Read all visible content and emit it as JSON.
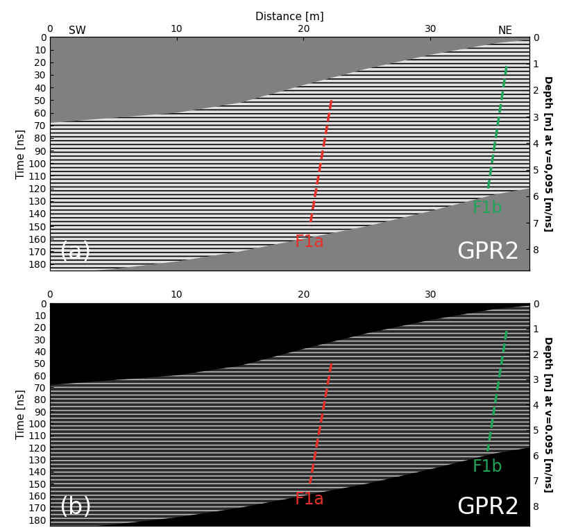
{
  "chart_data": [
    {
      "type": "area",
      "panel_label": "(a)",
      "profile": "GPR2",
      "x_label": "Distance [m]",
      "y_label": "Time [ns]",
      "y2_label": "Depth [m] at v=0,095 [m/ns]",
      "direction_labels": [
        "SW",
        "NE"
      ],
      "xlim": [
        0,
        37.8
      ],
      "xticks": [
        0,
        10,
        20,
        30
      ],
      "ylim": [
        185,
        0
      ],
      "yticks": [
        0,
        10,
        20,
        30,
        40,
        50,
        60,
        70,
        80,
        90,
        100,
        110,
        120,
        130,
        140,
        150,
        160,
        170,
        180
      ],
      "y2lim": [
        8.79,
        0
      ],
      "y2ticks": [
        0,
        1,
        2,
        3,
        4,
        5,
        6,
        7,
        8
      ],
      "extent": {
        "x": [
          0,
          5,
          10,
          15,
          20,
          25,
          30,
          35,
          37.8
        ],
        "top": [
          68,
          64,
          60,
          52,
          38,
          25,
          14,
          5,
          2
        ],
        "bottom": [
          188,
          184,
          178,
          170,
          160,
          150,
          138,
          125,
          120
        ],
        "color": "#e0e0e0"
      },
      "faults": [
        {
          "name": "F1a",
          "color": "#e8302a",
          "line_style": "dashed",
          "x": [
            22.2,
            20.5
          ],
          "values": [
            50,
            150
          ]
        },
        {
          "name": "F1b",
          "color": "#1fa65a",
          "line_style": "dashed",
          "x": [
            36.0,
            34.5
          ],
          "values": [
            23,
            123
          ]
        }
      ]
    },
    {
      "type": "area",
      "panel_label": "(b)",
      "profile": "GPR2",
      "y_label": "Time [ns]",
      "y2_label": "Depth [m] at v=0.095 [m/ns]",
      "xlim": [
        0,
        37.8
      ],
      "xticks": [
        0,
        10,
        20,
        30
      ],
      "ylim": [
        185,
        0
      ],
      "yticks": [
        0,
        10,
        20,
        30,
        40,
        50,
        60,
        70,
        80,
        90,
        100,
        110,
        120,
        130,
        140,
        150,
        160,
        170,
        180
      ],
      "y2lim": [
        8.79,
        0
      ],
      "y2ticks": [
        0,
        1,
        2,
        3,
        4,
        5,
        6,
        7,
        8
      ],
      "extent": {
        "x": [
          0,
          5,
          10,
          15,
          20,
          25,
          30,
          35,
          37.8
        ],
        "top": [
          68,
          64,
          60,
          52,
          38,
          25,
          14,
          5,
          2
        ],
        "bottom": [
          188,
          184,
          178,
          170,
          160,
          150,
          138,
          125,
          120
        ],
        "color": "#2a2a2a"
      },
      "faults": [
        {
          "name": "F1a",
          "color": "#e8302a",
          "line_style": "dashed",
          "x": [
            22.2,
            20.5
          ],
          "values": [
            50,
            150
          ]
        },
        {
          "name": "F1b",
          "color": "#1fa65a",
          "line_style": "dashed",
          "x": [
            36.0,
            34.5
          ],
          "values": [
            23,
            123
          ]
        }
      ]
    }
  ]
}
